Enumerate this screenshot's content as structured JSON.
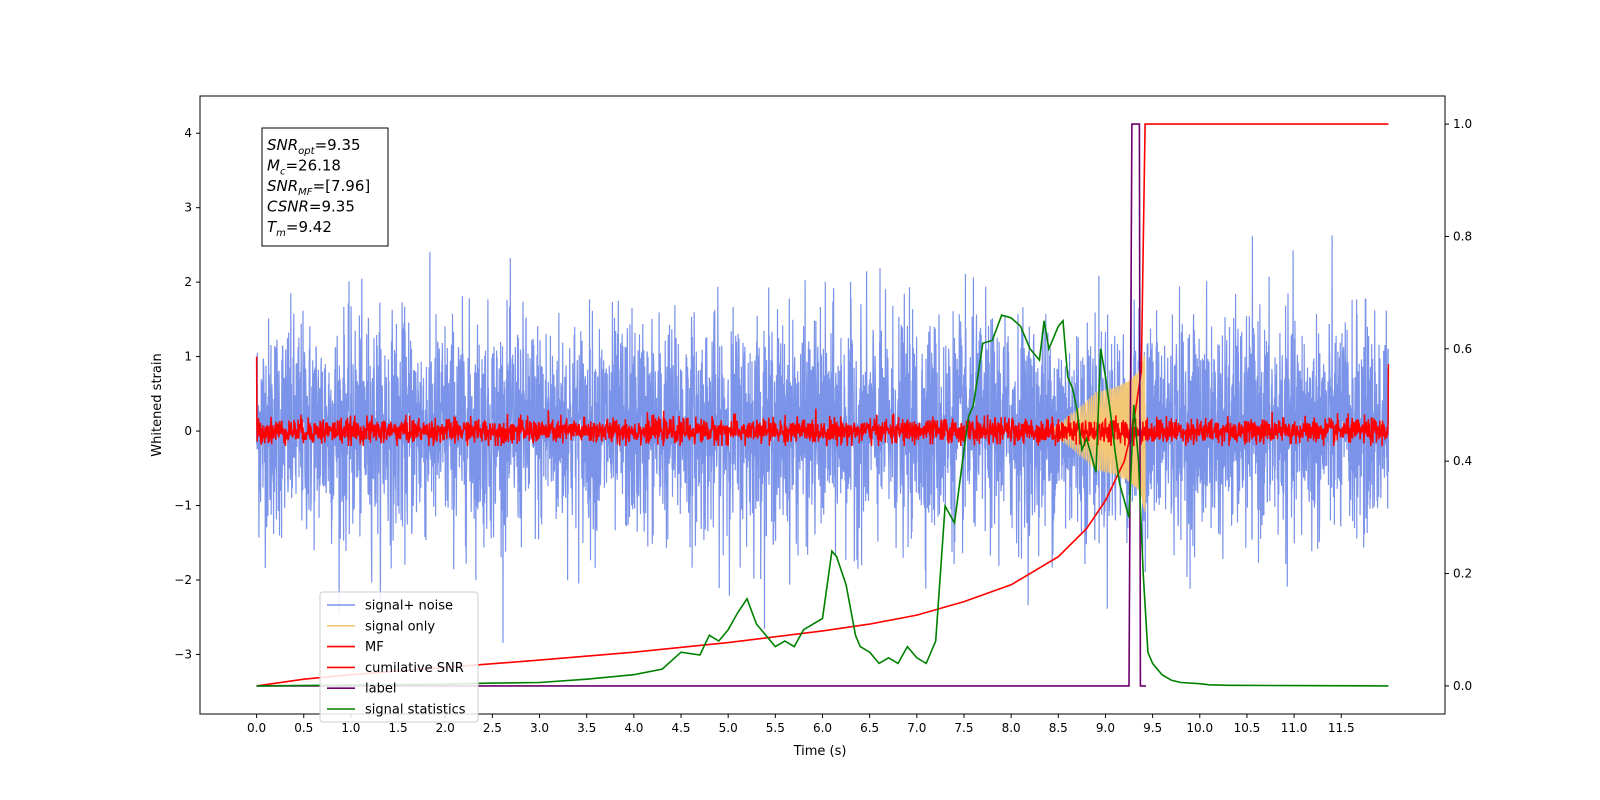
{
  "chart_data": {
    "type": "line",
    "xlabel": "Time (s)",
    "ylabel_left": "Whitened strain",
    "ylabel_right": "",
    "xlim": [
      -0.6,
      12.6
    ],
    "ylim_left": [
      -3.8,
      4.5
    ],
    "ylim_right": [
      -0.05,
      1.05
    ],
    "x_ticks": [
      "0.0",
      "0.5",
      "1.0",
      "1.5",
      "2.0",
      "2.5",
      "3.0",
      "3.5",
      "4.0",
      "4.5",
      "5.0",
      "5.5",
      "6.0",
      "6.5",
      "7.0",
      "7.5",
      "8.0",
      "8.5",
      "9.0",
      "9.5",
      "10.0",
      "10.5",
      "11.0",
      "11.5"
    ],
    "y_ticks_left": [
      -3,
      -2,
      -1,
      0,
      1,
      2,
      3,
      4
    ],
    "y_ticks_right": [
      "0.0",
      "0.2",
      "0.4",
      "0.6",
      "0.8",
      "1.0"
    ],
    "grid": false,
    "legend_placement": "lower-left",
    "annotation": {
      "lines": [
        {
          "base": "SNR",
          "sub": "opt",
          "value": "=9.35"
        },
        {
          "base": "M",
          "sub": "c",
          "value": "=26.18"
        },
        {
          "base": "SNR",
          "sub": "MF",
          "value": "=[7.96]"
        },
        {
          "base": "CSNR",
          "sub": "",
          "value": "=9.35"
        },
        {
          "base": "T",
          "sub": "m",
          "value": "=9.42"
        }
      ]
    },
    "series": [
      {
        "name": "signal+ noise",
        "axis": "left",
        "color": "#7b93e8",
        "kind": "noise",
        "x_range": [
          0,
          12
        ],
        "amplitude_envelope": [
          -2.4,
          2.6
        ]
      },
      {
        "name": "signal only",
        "axis": "left",
        "color": "#f5c877",
        "kind": "chirp",
        "x_range": [
          0,
          9.42
        ],
        "peak_amplitude": 1.2
      },
      {
        "name": "MF",
        "axis": "left",
        "color": "#ff0000",
        "kind": "noise",
        "x_range": [
          0,
          12
        ],
        "amplitude_envelope": [
          -0.2,
          0.3
        ],
        "start_value": 1.0,
        "end_value": 0.9
      },
      {
        "name": "cumilative SNR",
        "axis": "right",
        "color": "#ff0000",
        "kind": "line",
        "x": [
          0,
          0.5,
          1.0,
          2.0,
          3.0,
          4.0,
          5.0,
          6.0,
          6.5,
          7.0,
          7.5,
          8.0,
          8.5,
          8.8,
          9.0,
          9.2,
          9.3,
          9.38,
          9.42,
          12.0
        ],
        "y": [
          0.0,
          0.012,
          0.02,
          0.033,
          0.046,
          0.06,
          0.077,
          0.098,
          0.11,
          0.126,
          0.15,
          0.18,
          0.23,
          0.28,
          0.33,
          0.4,
          0.47,
          0.56,
          1.0,
          1.0
        ]
      },
      {
        "name": "label",
        "axis": "right",
        "color": "#6b006b",
        "kind": "line",
        "x": [
          0,
          9.25,
          9.28,
          9.36,
          9.37,
          9.42,
          9.43
        ],
        "y": [
          0,
          0,
          1.0,
          1.0,
          0,
          0,
          0
        ]
      },
      {
        "name": "signal statistics",
        "axis": "right",
        "color": "#008000",
        "kind": "line",
        "x": [
          0,
          2.0,
          2.5,
          3.0,
          3.5,
          4.0,
          4.3,
          4.5,
          4.7,
          4.8,
          4.9,
          5.0,
          5.1,
          5.2,
          5.3,
          5.4,
          5.5,
          5.6,
          5.7,
          5.8,
          6.0,
          6.1,
          6.15,
          6.25,
          6.35,
          6.4,
          6.5,
          6.6,
          6.7,
          6.8,
          6.9,
          7.0,
          7.1,
          7.2,
          7.3,
          7.4,
          7.5,
          7.55,
          7.6,
          7.7,
          7.8,
          7.9,
          8.0,
          8.1,
          8.2,
          8.3,
          8.35,
          8.4,
          8.45,
          8.5,
          8.55,
          8.6,
          8.65,
          8.7,
          8.75,
          8.8,
          8.9,
          8.95,
          9.0,
          9.05,
          9.1,
          9.15,
          9.2,
          9.25,
          9.3,
          9.35,
          9.4,
          9.45,
          9.5,
          9.6,
          9.7,
          9.8,
          10.0,
          10.1,
          10.3,
          11.0,
          12.0
        ],
        "y": [
          0,
          0.003,
          0.005,
          0.006,
          0.012,
          0.02,
          0.03,
          0.06,
          0.055,
          0.09,
          0.08,
          0.1,
          0.13,
          0.155,
          0.11,
          0.09,
          0.07,
          0.08,
          0.07,
          0.1,
          0.12,
          0.24,
          0.23,
          0.18,
          0.09,
          0.07,
          0.06,
          0.04,
          0.05,
          0.04,
          0.07,
          0.05,
          0.04,
          0.08,
          0.32,
          0.29,
          0.42,
          0.48,
          0.5,
          0.61,
          0.615,
          0.66,
          0.655,
          0.64,
          0.6,
          0.58,
          0.65,
          0.6,
          0.62,
          0.64,
          0.65,
          0.55,
          0.53,
          0.49,
          0.42,
          0.44,
          0.38,
          0.6,
          0.55,
          0.49,
          0.42,
          0.36,
          0.33,
          0.3,
          0.5,
          0.4,
          0.2,
          0.06,
          0.04,
          0.02,
          0.01,
          0.006,
          0.004,
          0.002,
          0.001,
          0.0005,
          0.0
        ]
      }
    ]
  }
}
